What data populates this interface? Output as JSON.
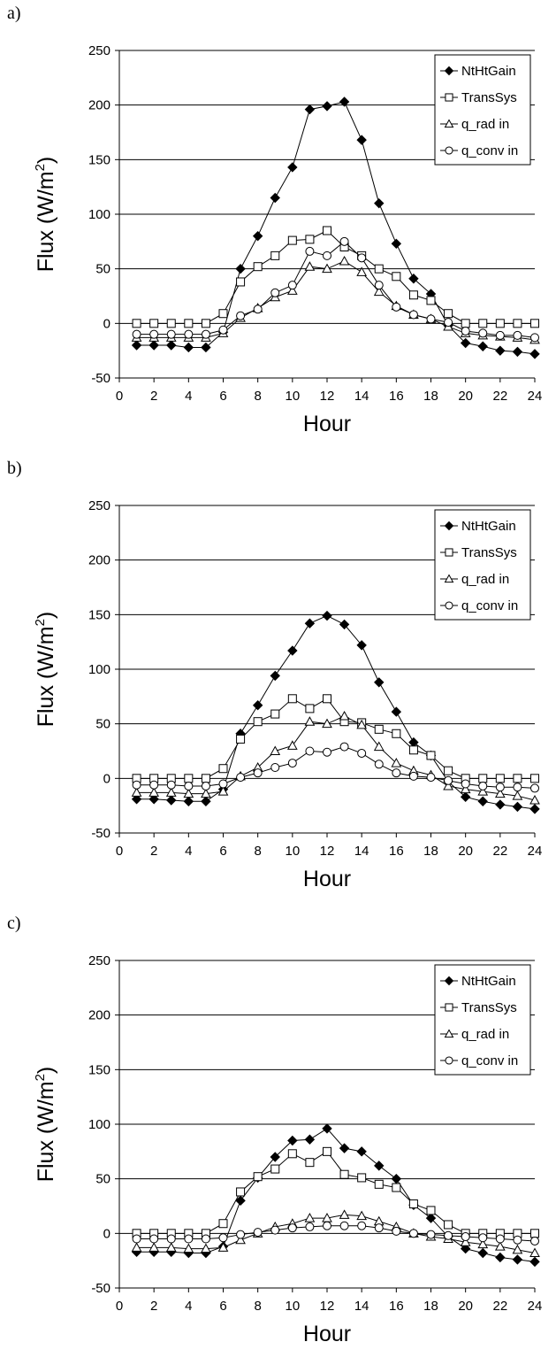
{
  "chart_data": [
    {
      "panel_label": "a)",
      "type": "line",
      "xlabel": "Hour",
      "ylabel": "Flux (W/m",
      "ylabel_sup": "2",
      "ylabel_close": ")",
      "xlim": [
        0,
        24
      ],
      "ylim": [
        -50,
        250
      ],
      "xticks": [
        "0",
        "2",
        "4",
        "6",
        "8",
        "10",
        "12",
        "14",
        "16",
        "18",
        "20",
        "22",
        "24"
      ],
      "yticks": [
        "-50",
        "0",
        "50",
        "100",
        "150",
        "200",
        "250"
      ],
      "grid": "horizontal",
      "legend_position": "top-right",
      "x": [
        1,
        2,
        3,
        4,
        5,
        6,
        7,
        8,
        9,
        10,
        11,
        12,
        13,
        14,
        15,
        16,
        17,
        18,
        19,
        20,
        21,
        22,
        23,
        24
      ],
      "series": [
        {
          "name": "NtHtGain",
          "marker": "filled-diamond",
          "values": [
            -20,
            -20,
            -20,
            -22,
            -22,
            -8,
            50,
            80,
            115,
            143,
            196,
            199,
            203,
            168,
            110,
            73,
            41,
            27,
            -2,
            -18,
            -21,
            -25,
            -26,
            -28
          ]
        },
        {
          "name": "TransSys",
          "marker": "open-square",
          "values": [
            0,
            0,
            0,
            0,
            0,
            9,
            38,
            52,
            62,
            76,
            77,
            85,
            70,
            62,
            50,
            43,
            26,
            21,
            9,
            0,
            0,
            0,
            0,
            0
          ]
        },
        {
          "name": "q_rad in",
          "marker": "open-triangle",
          "values": [
            -13,
            -13,
            -13,
            -13,
            -13,
            -9,
            5,
            14,
            24,
            30,
            52,
            50,
            57,
            47,
            29,
            16,
            8,
            4,
            -3,
            -9,
            -11,
            -12,
            -13,
            -15
          ]
        },
        {
          "name": "q_conv in",
          "marker": "open-circle",
          "values": [
            -10,
            -10,
            -10,
            -10,
            -10,
            -6,
            7,
            13,
            28,
            35,
            66,
            62,
            75,
            60,
            35,
            15,
            8,
            4,
            1,
            -7,
            -9,
            -11,
            -11,
            -13
          ]
        }
      ]
    },
    {
      "panel_label": "b)",
      "type": "line",
      "xlabel": "Hour",
      "ylabel": "Flux (W/m",
      "ylabel_sup": "2",
      "ylabel_close": ")",
      "xlim": [
        0,
        24
      ],
      "ylim": [
        -50,
        250
      ],
      "xticks": [
        "0",
        "2",
        "4",
        "6",
        "8",
        "10",
        "12",
        "14",
        "16",
        "18",
        "20",
        "22",
        "24"
      ],
      "yticks": [
        "-50",
        "0",
        "50",
        "100",
        "150",
        "200",
        "250"
      ],
      "grid": "horizontal",
      "legend_position": "top-right",
      "x": [
        1,
        2,
        3,
        4,
        5,
        6,
        7,
        8,
        9,
        10,
        11,
        12,
        13,
        14,
        15,
        16,
        17,
        18,
        19,
        20,
        21,
        22,
        23,
        24
      ],
      "series": [
        {
          "name": "NtHtGain",
          "marker": "filled-diamond",
          "values": [
            -19,
            -19,
            -20,
            -21,
            -21,
            -10,
            41,
            67,
            94,
            117,
            142,
            149,
            141,
            122,
            88,
            61,
            33,
            21,
            -3,
            -17,
            -21,
            -24,
            -26,
            -28
          ]
        },
        {
          "name": "TransSys",
          "marker": "open-square",
          "values": [
            0,
            0,
            0,
            0,
            0,
            9,
            36,
            52,
            59,
            73,
            64,
            73,
            52,
            51,
            45,
            41,
            26,
            21,
            7,
            0,
            0,
            0,
            0,
            0
          ]
        },
        {
          "name": "q_rad in",
          "marker": "open-triangle",
          "values": [
            -13,
            -13,
            -13,
            -14,
            -14,
            -12,
            2,
            10,
            25,
            30,
            52,
            50,
            57,
            49,
            29,
            14,
            7,
            3,
            -7,
            -10,
            -12,
            -14,
            -16,
            -20
          ]
        },
        {
          "name": "q_conv in",
          "marker": "open-circle",
          "values": [
            -6,
            -6,
            -6,
            -7,
            -7,
            -5,
            1,
            5,
            10,
            14,
            25,
            24,
            29,
            23,
            13,
            5,
            2,
            1,
            -2,
            -5,
            -7,
            -8,
            -8,
            -9
          ]
        }
      ]
    },
    {
      "panel_label": "c)",
      "type": "line",
      "xlabel": "Hour",
      "ylabel": "Flux (W/m",
      "ylabel_sup": "2",
      "ylabel_close": ")",
      "xlim": [
        0,
        24
      ],
      "ylim": [
        -50,
        250
      ],
      "xticks": [
        "0",
        "2",
        "4",
        "6",
        "8",
        "10",
        "12",
        "14",
        "16",
        "18",
        "20",
        "22",
        "24"
      ],
      "yticks": [
        "-50",
        "0",
        "50",
        "100",
        "150",
        "200",
        "250"
      ],
      "grid": "horizontal",
      "legend_position": "top-right",
      "x": [
        1,
        2,
        3,
        4,
        5,
        6,
        7,
        8,
        9,
        10,
        11,
        12,
        13,
        14,
        15,
        16,
        17,
        18,
        19,
        20,
        21,
        22,
        23,
        24
      ],
      "series": [
        {
          "name": "NtHtGain",
          "marker": "filled-diamond",
          "values": [
            -17,
            -17,
            -17,
            -18,
            -18,
            -12,
            30,
            51,
            70,
            85,
            86,
            96,
            78,
            75,
            62,
            50,
            26,
            14,
            -3,
            -14,
            -18,
            -22,
            -24,
            -26
          ]
        },
        {
          "name": "TransSys",
          "marker": "open-square",
          "values": [
            0,
            0,
            0,
            0,
            0,
            9,
            38,
            52,
            59,
            73,
            65,
            75,
            54,
            51,
            45,
            42,
            27,
            21,
            8,
            0,
            0,
            0,
            0,
            0
          ]
        },
        {
          "name": "q_rad in",
          "marker": "open-triangle",
          "values": [
            -13,
            -13,
            -13,
            -14,
            -14,
            -13,
            -6,
            0,
            6,
            9,
            14,
            14,
            17,
            16,
            11,
            6,
            0,
            -3,
            -5,
            -8,
            -10,
            -12,
            -15,
            -18
          ]
        },
        {
          "name": "q_conv in",
          "marker": "open-circle",
          "values": [
            -5,
            -5,
            -5,
            -5,
            -5,
            -4,
            -1,
            1,
            3,
            5,
            6,
            7,
            7,
            7,
            5,
            2,
            0,
            -1,
            -2,
            -3,
            -4,
            -5,
            -6,
            -7
          ]
        }
      ]
    }
  ]
}
